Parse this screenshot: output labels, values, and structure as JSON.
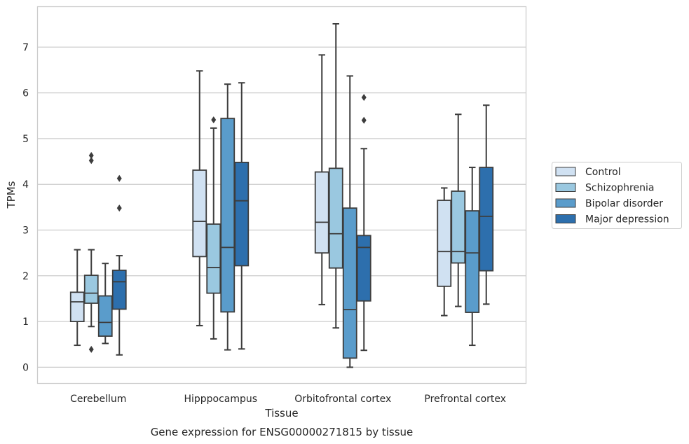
{
  "chart_data": {
    "type": "box",
    "title": "",
    "caption": "Gene expression for ENSG00000271815 by tissue",
    "xlabel": "Tissue",
    "ylabel": "TPMs",
    "ylim": [
      -0.35,
      7.9
    ],
    "yticks": [
      0,
      1,
      2,
      3,
      4,
      5,
      6,
      7
    ],
    "grid": "horizontal",
    "legend_position": "right",
    "categories": [
      "Cerebellum",
      "Hipppocampus",
      "Orbitofrontal cortex",
      "Prefrontal cortex"
    ],
    "series": [
      {
        "name": "Control",
        "color": "#d0e1f2",
        "boxes": [
          {
            "whisker_low": 0.48,
            "q1": 1.0,
            "median": 1.43,
            "q3": 1.64,
            "whisker_high": 2.57,
            "outliers": []
          },
          {
            "whisker_low": 0.91,
            "q1": 2.42,
            "median": 3.19,
            "q3": 4.31,
            "whisker_high": 6.48,
            "outliers": []
          },
          {
            "whisker_low": 1.37,
            "q1": 2.5,
            "median": 3.17,
            "q3": 4.27,
            "whisker_high": 6.83,
            "outliers": []
          },
          {
            "whisker_low": 1.13,
            "q1": 1.77,
            "median": 2.53,
            "q3": 3.65,
            "whisker_high": 3.92,
            "outliers": []
          }
        ]
      },
      {
        "name": "Schizophrenia",
        "color": "#9ac8e0",
        "boxes": [
          {
            "whisker_low": 0.89,
            "q1": 1.4,
            "median": 1.62,
            "q3": 2.01,
            "whisker_high": 2.57,
            "outliers": [
              4.52,
              4.63,
              0.39
            ]
          },
          {
            "whisker_low": 0.62,
            "q1": 1.62,
            "median": 2.18,
            "q3": 3.13,
            "whisker_high": 5.23,
            "outliers": [
              5.41
            ]
          },
          {
            "whisker_low": 0.86,
            "q1": 2.17,
            "median": 2.92,
            "q3": 4.35,
            "whisker_high": 7.51,
            "outliers": []
          },
          {
            "whisker_low": 1.33,
            "q1": 2.28,
            "median": 2.53,
            "q3": 3.85,
            "whisker_high": 5.53,
            "outliers": []
          }
        ]
      },
      {
        "name": "Bipolar disorder",
        "color": "#5a9ccb",
        "boxes": [
          {
            "whisker_low": 0.52,
            "q1": 0.68,
            "median": 0.98,
            "q3": 1.56,
            "whisker_high": 2.27,
            "outliers": []
          },
          {
            "whisker_low": 0.38,
            "q1": 1.21,
            "median": 2.62,
            "q3": 5.44,
            "whisker_high": 6.19,
            "outliers": []
          },
          {
            "whisker_low": 0.0,
            "q1": 0.2,
            "median": 1.26,
            "q3": 3.48,
            "whisker_high": 6.37,
            "outliers": []
          },
          {
            "whisker_low": 0.48,
            "q1": 1.2,
            "median": 2.5,
            "q3": 3.42,
            "whisker_high": 4.37,
            "outliers": []
          }
        ]
      },
      {
        "name": "Major depression",
        "color": "#2d6fad",
        "boxes": [
          {
            "whisker_low": 0.27,
            "q1": 1.27,
            "median": 1.87,
            "q3": 2.12,
            "whisker_high": 2.44,
            "outliers": [
              4.13,
              3.48
            ]
          },
          {
            "whisker_low": 0.4,
            "q1": 2.22,
            "median": 3.64,
            "q3": 4.48,
            "whisker_high": 6.22,
            "outliers": []
          },
          {
            "whisker_low": 0.37,
            "q1": 1.45,
            "median": 2.62,
            "q3": 2.88,
            "whisker_high": 4.78,
            "outliers": [
              5.9,
              5.4
            ]
          },
          {
            "whisker_low": 1.38,
            "q1": 2.11,
            "median": 3.3,
            "q3": 4.37,
            "whisker_high": 5.73,
            "outliers": []
          }
        ]
      }
    ]
  }
}
